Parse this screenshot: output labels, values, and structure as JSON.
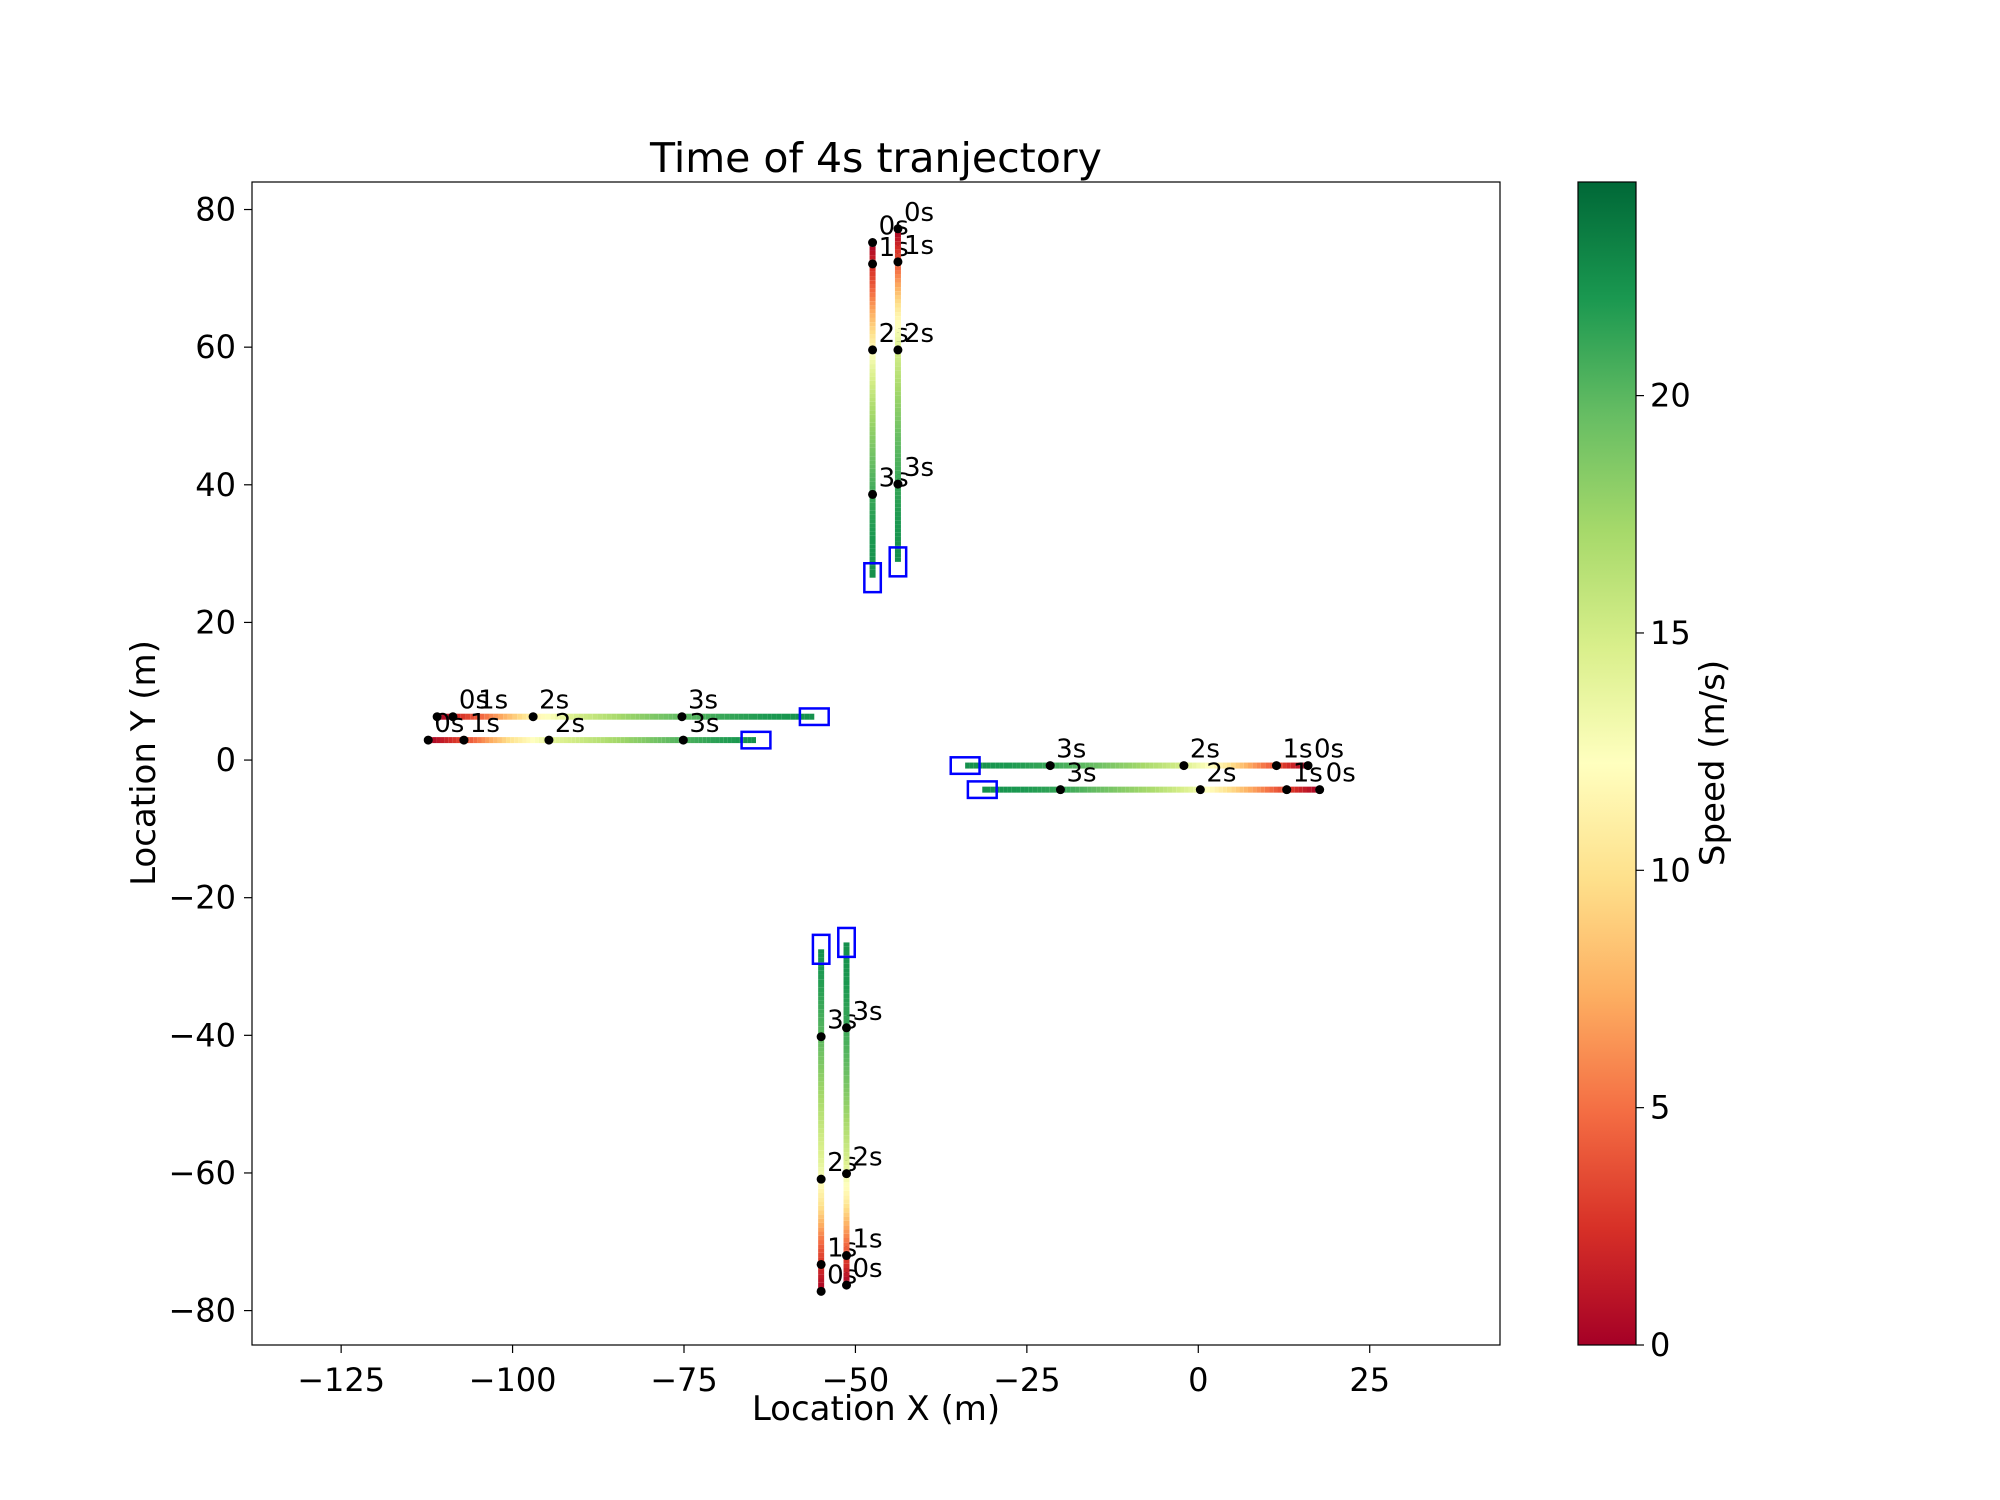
{
  "chart_data": {
    "type": "line",
    "title": "Time of 4s tranjectory",
    "xlabel": "Location X (m)",
    "ylabel": "Location Y (m)",
    "xlim": [
      -138,
      44
    ],
    "ylim": [
      -85,
      84
    ],
    "xticks": [
      -125,
      -100,
      -75,
      -50,
      -25,
      0,
      25
    ],
    "xtick_labels": [
      "−125",
      "−100",
      "−75",
      "−50",
      "−25",
      "0",
      "25"
    ],
    "yticks": [
      -80,
      -60,
      -40,
      -20,
      0,
      20,
      40,
      60,
      80
    ],
    "ytick_labels": [
      "−80",
      "−60",
      "−40",
      "−20",
      "0",
      "20",
      "40",
      "60",
      "80"
    ],
    "grid": false,
    "colorbar": {
      "label": "Speed (m/s)",
      "min": 0,
      "max": 24.5,
      "colormap": "RdYlGn",
      "ticks": [
        0,
        5,
        10,
        15,
        20
      ],
      "tick_labels": [
        "0",
        "5",
        "10",
        "15",
        "20"
      ]
    },
    "box_color": "#0000ff",
    "marker_color": "#000000",
    "trajectories": [
      {
        "id": "north-left",
        "axis": "y",
        "fixed": -47.5,
        "start": 75.2,
        "end": 26.5,
        "speed_profile": [
          0,
          4,
          9,
          14,
          17,
          19,
          21,
          22,
          22.5
        ],
        "markers": [
          {
            "pos": 75.2,
            "label": "0s"
          },
          {
            "pos": 72.1,
            "label": "1s"
          },
          {
            "pos": 59.6,
            "label": "2s"
          },
          {
            "pos": 38.6,
            "label": "3s"
          }
        ],
        "box": {
          "w": 2.4,
          "h": 4.2
        }
      },
      {
        "id": "north-right",
        "axis": "y",
        "fixed": -43.8,
        "start": 77.2,
        "end": 28.8,
        "speed_profile": [
          0,
          5,
          11,
          15,
          17.5,
          19.5,
          21,
          22,
          22.5
        ],
        "markers": [
          {
            "pos": 77.2,
            "label": "0s"
          },
          {
            "pos": 72.4,
            "label": "1s"
          },
          {
            "pos": 59.6,
            "label": "2s"
          },
          {
            "pos": 40.1,
            "label": "3s"
          }
        ],
        "box": {
          "w": 2.4,
          "h": 4.2
        }
      },
      {
        "id": "west-top",
        "axis": "x",
        "fixed": 6.3,
        "start": -111,
        "end": -56,
        "speed_profile": [
          0,
          5,
          11,
          15,
          17.5,
          19.5,
          21,
          22,
          22.5
        ],
        "markers": [
          {
            "pos": -111,
            "label": ""
          },
          {
            "pos": -108.7,
            "label": "0s"
          },
          {
            "pos": -97,
            "label": "2s"
          },
          {
            "pos": -75.3,
            "label": "3s"
          }
        ],
        "extra_labels": [
          {
            "pos": -105.9,
            "label": "1s"
          }
        ],
        "box": {
          "w": 4.2,
          "h": 2.4
        }
      },
      {
        "id": "west-bottom",
        "axis": "x",
        "fixed": 2.9,
        "start": -112.3,
        "end": -64.5,
        "speed_profile": [
          0,
          4,
          10,
          14,
          16,
          18,
          20,
          21.5,
          22.5
        ],
        "markers": [
          {
            "pos": -112.3,
            "label": "0s"
          },
          {
            "pos": -107.1,
            "label": "1s"
          },
          {
            "pos": -94.7,
            "label": "2s"
          },
          {
            "pos": -75.1,
            "label": "3s"
          }
        ],
        "box": {
          "w": 4.2,
          "h": 2.4
        }
      },
      {
        "id": "east-top",
        "axis": "x",
        "fixed": -0.8,
        "start": 16,
        "end": -34,
        "speed_profile": [
          0,
          5,
          11,
          15,
          17.5,
          19.5,
          21,
          22,
          22.5
        ],
        "markers": [
          {
            "pos": 16,
            "label": "0s"
          },
          {
            "pos": 11.4,
            "label": "1s"
          },
          {
            "pos": -2.1,
            "label": "2s"
          },
          {
            "pos": -21.6,
            "label": "3s"
          }
        ],
        "box": {
          "w": 4.2,
          "h": 2.4
        }
      },
      {
        "id": "east-bottom",
        "axis": "x",
        "fixed": -4.3,
        "start": 17.7,
        "end": -31.5,
        "speed_profile": [
          0,
          4,
          9,
          14,
          17,
          19,
          21,
          22,
          22.5
        ],
        "markers": [
          {
            "pos": 17.7,
            "label": "0s"
          },
          {
            "pos": 12.9,
            "label": "1s"
          },
          {
            "pos": 0.3,
            "label": "2s"
          },
          {
            "pos": -20.1,
            "label": "3s"
          }
        ],
        "box": {
          "w": 4.2,
          "h": 2.4
        }
      },
      {
        "id": "south-left",
        "axis": "y",
        "fixed": -55,
        "start": -77.2,
        "end": -27.5,
        "speed_profile": [
          0,
          4,
          10,
          14,
          16,
          18,
          20,
          21.5,
          22.5
        ],
        "markers": [
          {
            "pos": -77.2,
            "label": "0s"
          },
          {
            "pos": -73.3,
            "label": "1s"
          },
          {
            "pos": -60.9,
            "label": "2s"
          },
          {
            "pos": -40.2,
            "label": "3s"
          }
        ],
        "box": {
          "w": 2.4,
          "h": 4.2
        }
      },
      {
        "id": "south-right",
        "axis": "y",
        "fixed": -51.3,
        "start": -76.3,
        "end": -26.5,
        "speed_profile": [
          0,
          5,
          11,
          15,
          17.5,
          19.5,
          21,
          22,
          22.5
        ],
        "markers": [
          {
            "pos": -76.3,
            "label": "0s"
          },
          {
            "pos": -72,
            "label": "1s"
          },
          {
            "pos": -60.1,
            "label": "2s"
          },
          {
            "pos": -38.9,
            "label": "3s"
          }
        ],
        "box": {
          "w": 2.4,
          "h": 4.2
        }
      }
    ]
  }
}
